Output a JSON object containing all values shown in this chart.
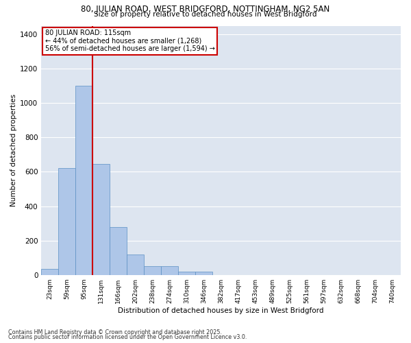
{
  "title_line1": "80, JULIAN ROAD, WEST BRIDGFORD, NOTTINGHAM, NG2 5AN",
  "title_line2": "Size of property relative to detached houses in West Bridgford",
  "xlabel": "Distribution of detached houses by size in West Bridgford",
  "ylabel": "Number of detached properties",
  "categories": [
    "23sqm",
    "59sqm",
    "95sqm",
    "131sqm",
    "166sqm",
    "202sqm",
    "238sqm",
    "274sqm",
    "310sqm",
    "346sqm",
    "382sqm",
    "417sqm",
    "453sqm",
    "489sqm",
    "525sqm",
    "561sqm",
    "597sqm",
    "632sqm",
    "668sqm",
    "704sqm",
    "740sqm"
  ],
  "values": [
    35,
    620,
    1100,
    645,
    280,
    120,
    50,
    50,
    18,
    18,
    0,
    0,
    0,
    0,
    0,
    0,
    0,
    0,
    0,
    0,
    0
  ],
  "bar_color": "#aec6e8",
  "bar_edge_color": "#5a8fc3",
  "background_color": "#dde5f0",
  "grid_color": "#ffffff",
  "vline_color": "#cc0000",
  "annotation_text_line1": "80 JULIAN ROAD: 115sqm",
  "annotation_text_line2": "← 44% of detached houses are smaller (1,268)",
  "annotation_text_line3": "56% of semi-detached houses are larger (1,594) →",
  "annotation_box_color": "#cc0000",
  "ylim": [
    0,
    1450
  ],
  "yticks": [
    0,
    200,
    400,
    600,
    800,
    1000,
    1200,
    1400
  ],
  "footnote1": "Contains HM Land Registry data © Crown copyright and database right 2025.",
  "footnote2": "Contains public sector information licensed under the Open Government Licence v3.0.",
  "fig_width": 6.0,
  "fig_height": 5.0,
  "dpi": 100
}
